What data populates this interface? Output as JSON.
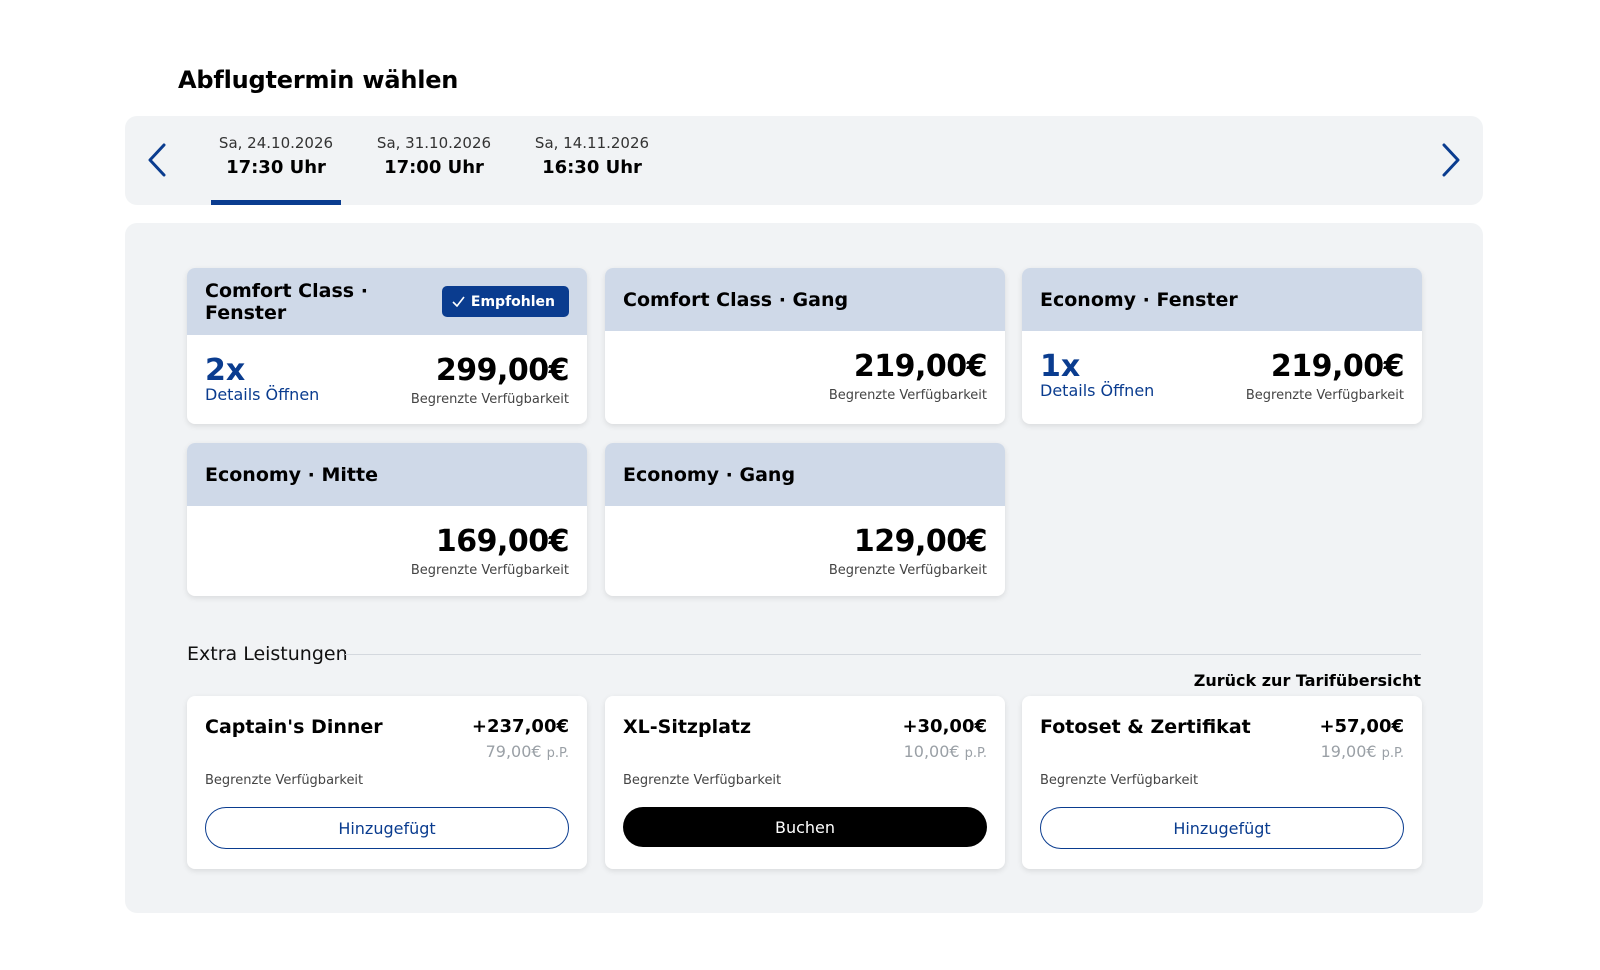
{
  "page": {
    "title": "Abflugtermin wählen"
  },
  "date_nav": {
    "prev_icon": "chevron-left-icon",
    "next_icon": "chevron-right-icon",
    "dates": [
      {
        "date": "Sa, 24.10.2026",
        "time": "17:30 Uhr",
        "active": true
      },
      {
        "date": "Sa, 31.10.2026",
        "time": "17:00 Uhr",
        "active": false
      },
      {
        "date": "Sa, 14.11.2026",
        "time": "16:30 Uhr",
        "active": false
      }
    ]
  },
  "fares": [
    {
      "title": "Comfort Class · Fenster",
      "badge": "Empfohlen",
      "count": "2x",
      "details": "Details Öffnen",
      "price": "299,00€",
      "availability": "Begrenzte Verfügbarkeit"
    },
    {
      "title": "Comfort Class · Gang",
      "price": "219,00€",
      "availability": "Begrenzte Verfügbarkeit"
    },
    {
      "title": "Economy · Fenster",
      "count": "1x",
      "details": "Details Öffnen",
      "price": "219,00€",
      "availability": "Begrenzte Verfügbarkeit"
    },
    {
      "title": "Economy · Mitte",
      "price": "169,00€",
      "availability": "Begrenzte Verfügbarkeit"
    },
    {
      "title": "Economy · Gang",
      "price": "129,00€",
      "availability": "Begrenzte Verfügbarkeit"
    }
  ],
  "extras": {
    "heading": "Extra Leistungen",
    "back_link": "Zurück zur Tarifübersicht",
    "items": [
      {
        "name": "Captain's Dinner",
        "price": "+237,00€",
        "per_person": "79,00€",
        "per_person_unit": "p.P.",
        "availability": "Begrenzte Verfügbarkeit",
        "button": "Hinzugefügt"
      },
      {
        "name": "XL-Sitzplatz",
        "price": "+30,00€",
        "per_person": "10,00€",
        "per_person_unit": "p.P.",
        "availability": "Begrenzte Verfügbarkeit",
        "button": "Buchen"
      },
      {
        "name": "Fotoset & Zertifikat",
        "price": "+57,00€",
        "per_person": "19,00€",
        "per_person_unit": "p.P.",
        "availability": "Begrenzte Verfügbarkeit",
        "button": "Hinzugefügt"
      }
    ]
  },
  "colors": {
    "accent": "#0a3c8f",
    "card_header": "#cfd9e8",
    "panel_bg": "#f1f3f5"
  }
}
